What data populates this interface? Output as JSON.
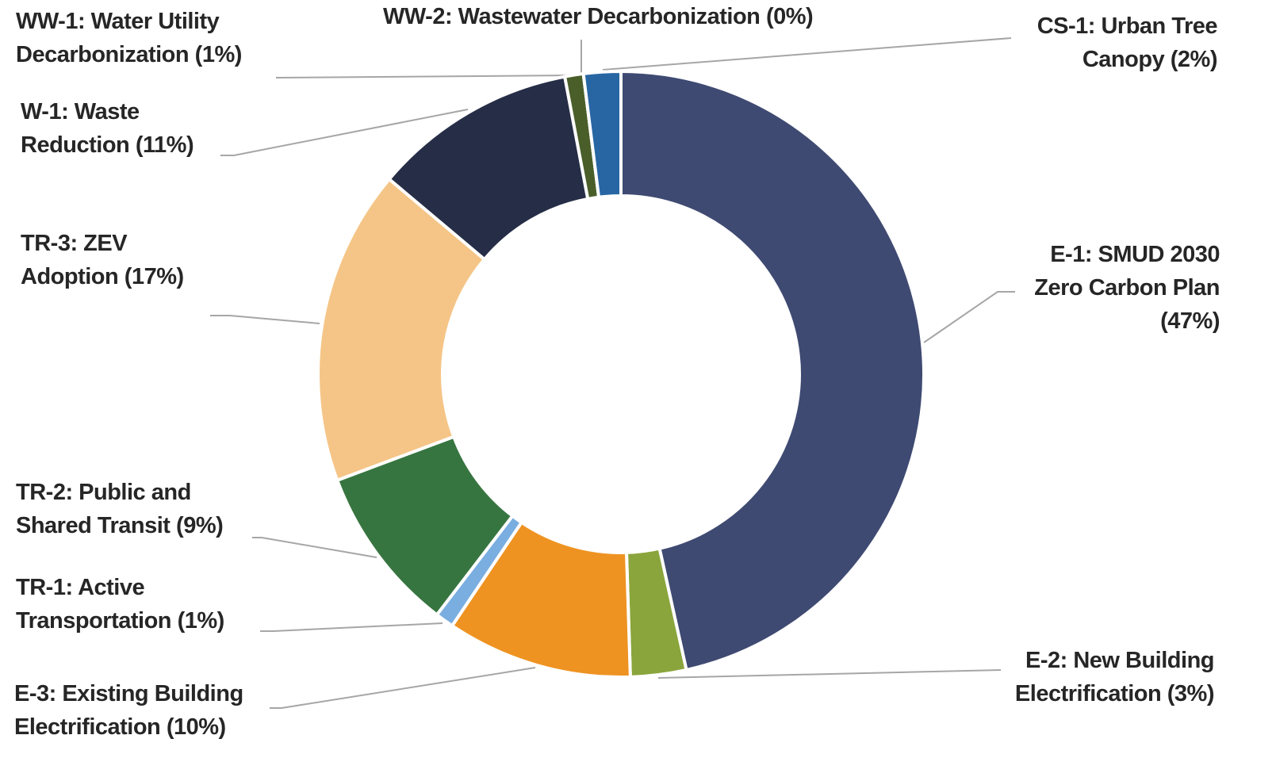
{
  "chart_data": {
    "type": "donut",
    "categories": [
      "E-1: SMUD 2030 Zero Carbon Plan",
      "E-2: New Building Electrification",
      "E-3: Existing Building Electrification",
      "TR-1: Active Transportation",
      "TR-2: Public and Shared Transit",
      "TR-3: ZEV Adoption",
      "W-1: Waste Reduction",
      "WW-1: Water Utility Decarbonization",
      "WW-2: Wastewater Decarbonization",
      "CS-1: Urban Tree Canopy"
    ],
    "values": [
      47,
      3,
      10,
      1,
      9,
      17,
      11,
      1,
      0,
      2
    ],
    "value_labels": [
      "(47%)",
      "(3%)",
      "(10%)",
      "(1%)",
      "(9%)",
      "(17%)",
      "(11%)",
      "(1%)",
      "(0%)",
      "(2%)"
    ],
    "colors": [
      "#3f4a72",
      "#8aa53c",
      "#ee9322",
      "#7aaee0",
      "#377540",
      "#f5c587",
      "#262d46",
      "#4a5e2a",
      "#b5641e",
      "#2866a3"
    ]
  }
}
